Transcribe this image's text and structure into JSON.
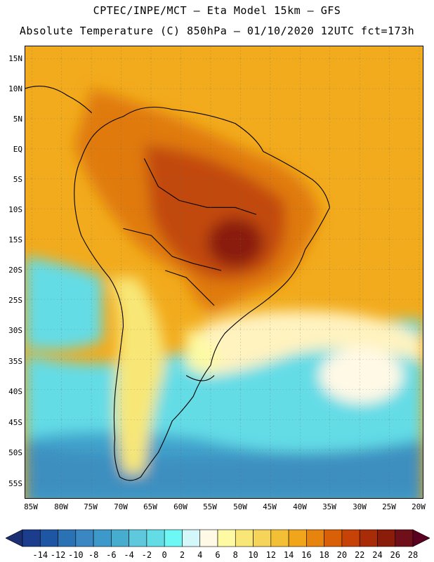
{
  "title": {
    "line1": "CPTEC/INPE/MCT –  Eta Model 15km – GFS",
    "line2": "Absolute Temperature (C) 850hPa – 01/10/2020 12UTC fct=173h"
  },
  "map": {
    "region": "South America",
    "lat_ticks": [
      "15N",
      "10N",
      "5N",
      "EQ",
      "5S",
      "10S",
      "15S",
      "20S",
      "25S",
      "30S",
      "35S",
      "40S",
      "45S",
      "50S",
      "55S"
    ],
    "lon_ticks": [
      "85W",
      "80W",
      "75W",
      "70W",
      "65W",
      "60W",
      "55W",
      "50W",
      "45W",
      "40W",
      "35W",
      "30W",
      "25W",
      "20W"
    ]
  },
  "legend": {
    "labels": [
      "-14",
      "-12",
      "-10",
      "-8",
      "-6",
      "-4",
      "-2",
      "0",
      "2",
      "4",
      "6",
      "8",
      "10",
      "12",
      "14",
      "16",
      "18",
      "20",
      "22",
      "24",
      "26",
      "28"
    ],
    "colors": [
      "#1c3d8c",
      "#1f56a3",
      "#2b72b5",
      "#3a87c4",
      "#3c99c9",
      "#47adcf",
      "#5ec8dc",
      "#63dce6",
      "#6df7f5",
      "#d4f8fa",
      "#fff9e6",
      "#fdfaa3",
      "#f8e777",
      "#f6d45a",
      "#f3bf35",
      "#f1a51a",
      "#e7840d",
      "#d96007",
      "#c64207",
      "#a92c08",
      "#8a1d0a",
      "#6f0f1a"
    ],
    "under_color": "#1c2f73",
    "over_color": "#5a0020"
  }
}
